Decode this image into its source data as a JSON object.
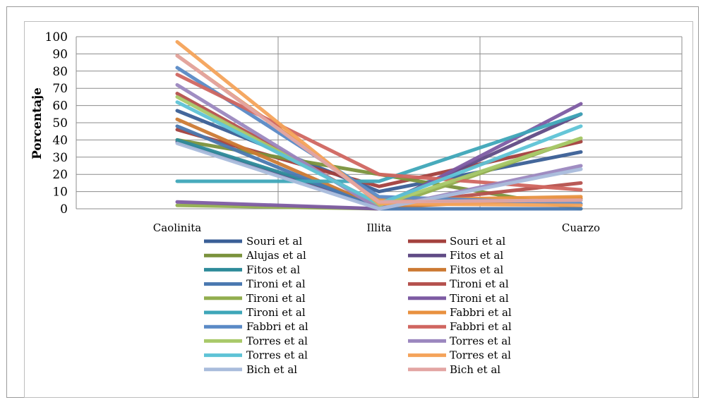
{
  "chart_data": {
    "type": "line",
    "title": "",
    "xlabel": "",
    "ylabel": "Porcentaje",
    "categories": [
      "Caolinita",
      "Illita",
      "Cuarzo"
    ],
    "ylim": [
      0,
      100
    ],
    "yticks": [
      0,
      10,
      20,
      30,
      40,
      50,
      60,
      70,
      80,
      90,
      100
    ],
    "grid": true,
    "legend_position": "bottom",
    "series": [
      {
        "name": "Souri et al",
        "color": "#3a5f96",
        "values": [
          57,
          10,
          33
        ]
      },
      {
        "name": "Souri et al",
        "color": "#a3403d",
        "values": [
          46,
          13,
          39
        ]
      },
      {
        "name": "Alujas et al",
        "color": "#7a923c",
        "values": [
          40,
          20,
          0
        ]
      },
      {
        "name": "Fitos et al",
        "color": "#604b85",
        "values": [
          39,
          2,
          55
        ]
      },
      {
        "name": "Fitos et al",
        "color": "#2e8b9a",
        "values": [
          40,
          3,
          5
        ]
      },
      {
        "name": "Fitos et al",
        "color": "#cc7a33",
        "values": [
          52,
          1,
          6
        ]
      },
      {
        "name": "Tironi et al",
        "color": "#4a78b0",
        "values": [
          48,
          0,
          0
        ]
      },
      {
        "name": "Tironi et al",
        "color": "#b5514d",
        "values": [
          67,
          2,
          15
        ]
      },
      {
        "name": "Tironi et al",
        "color": "#92ae4f",
        "values": [
          2,
          0,
          41
        ]
      },
      {
        "name": "Tironi et al",
        "color": "#7d5ba3",
        "values": [
          4,
          0,
          61
        ]
      },
      {
        "name": "Tironi et al",
        "color": "#3ea6b8",
        "values": [
          16,
          16,
          55
        ]
      },
      {
        "name": "Fabbri et al",
        "color": "#e8913f",
        "values": [
          89,
          5,
          7
        ]
      },
      {
        "name": "Fabbri et al",
        "color": "#5a8ac6",
        "values": [
          82,
          7,
          3
        ]
      },
      {
        "name": "Fabbri et al",
        "color": "#d06660",
        "values": [
          78,
          20,
          11
        ]
      },
      {
        "name": "Torres et al",
        "color": "#a9c96a",
        "values": [
          65,
          2,
          41
        ]
      },
      {
        "name": "Torres et al",
        "color": "#9b87bf",
        "values": [
          72,
          0,
          25
        ]
      },
      {
        "name": "Torres et al",
        "color": "#5ec3d6",
        "values": [
          62,
          3,
          48
        ]
      },
      {
        "name": "Torres et al",
        "color": "#f4a35a",
        "values": [
          97,
          3,
          2
        ]
      },
      {
        "name": "Bich et al",
        "color": "#a9bcdc",
        "values": [
          38,
          0,
          23
        ]
      },
      {
        "name": "Bich et al",
        "color": "#e3a5a3",
        "values": [
          89,
          4,
          5
        ]
      }
    ]
  }
}
